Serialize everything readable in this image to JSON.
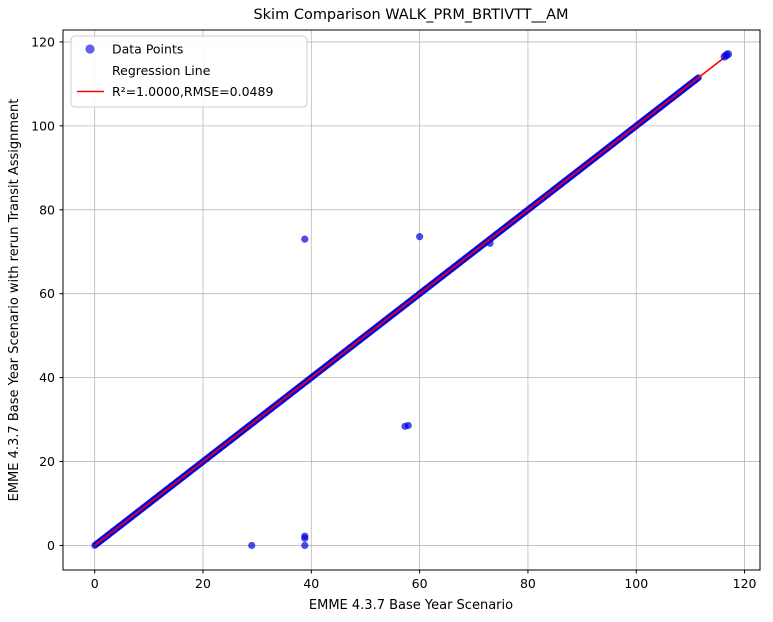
{
  "chart_data": {
    "type": "scatter",
    "title": "Skim Comparison WALK_PRM_BRTIVTT__AM",
    "xlabel": "EMME 4.3.7 Base Year Scenario",
    "ylabel": "EMME 4.3.7 Base Year Scenario with rerun Transit Assignment",
    "xlim": [
      -5.85,
      122.85
    ],
    "ylim": [
      -5.85,
      122.85
    ],
    "xticks": [
      0,
      20,
      40,
      60,
      80,
      100,
      120
    ],
    "yticks": [
      0,
      20,
      40,
      60,
      80,
      100,
      120
    ],
    "grid": true,
    "legend_position": "upper left",
    "legend": {
      "data_points": "Data Points",
      "regression": "Regression Line",
      "stats": "R²=1.0000,RMSE=0.0489"
    },
    "series": [
      {
        "name": "Data Points",
        "type": "scatter",
        "color": "#0000e0",
        "marker": "circle",
        "relation": "y = x (identity line, dense overlapping points)",
        "diagonal": {
          "from": 0,
          "to": 111.5,
          "count": 520
        },
        "end_cluster": [
          [
            116.3,
            116.5
          ],
          [
            116.65,
            116.85
          ],
          [
            116.95,
            117.1
          ]
        ],
        "outliers": [
          [
            29,
            0
          ],
          [
            38.8,
            0
          ],
          [
            38.8,
            1.7
          ],
          [
            38.8,
            2.2
          ],
          [
            38.8,
            73
          ],
          [
            57.3,
            28.4
          ],
          [
            57.9,
            28.6
          ],
          [
            60,
            73.6
          ],
          [
            73,
            72
          ]
        ]
      },
      {
        "name": "Regression Line",
        "type": "line",
        "color": "#ff0000",
        "points": [
          [
            0,
            0
          ],
          [
            117,
            117
          ]
        ],
        "r_squared": "1.0000",
        "rmse": "0.0489"
      }
    ]
  }
}
